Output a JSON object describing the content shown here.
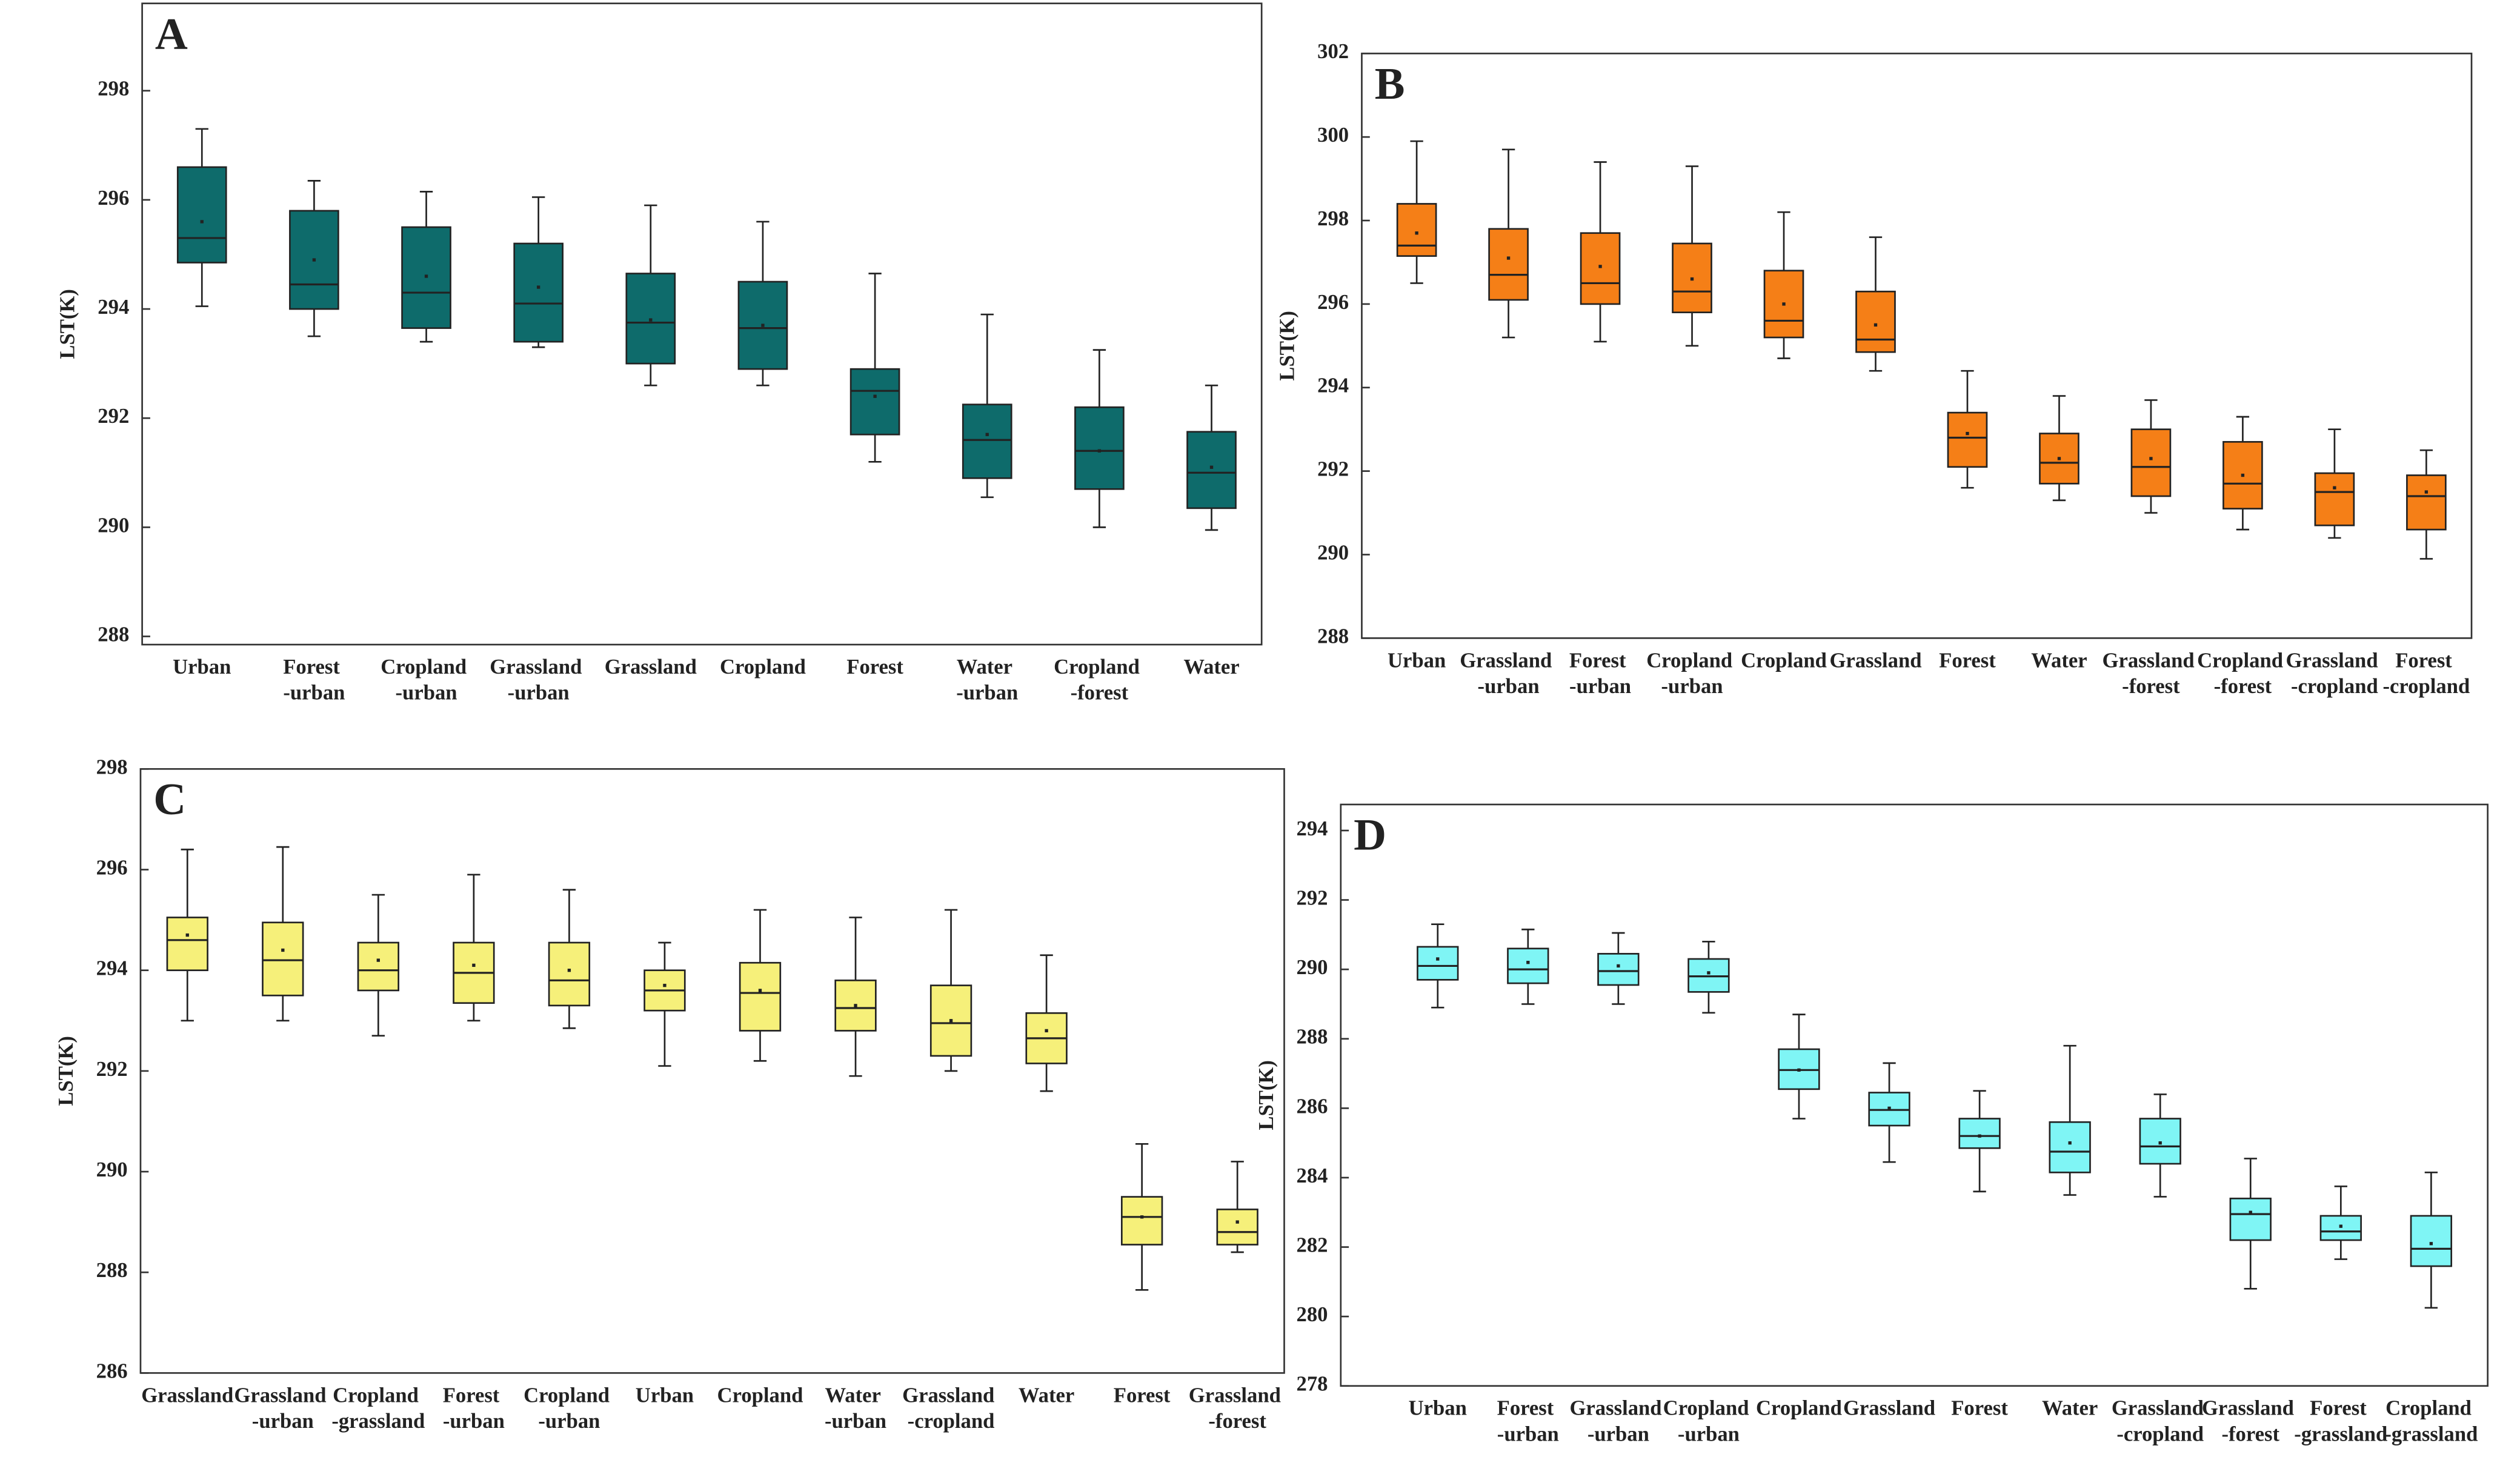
{
  "chart_data": [
    {
      "type": "box",
      "label": "A",
      "ylabel": "LST(K)",
      "color": "#0e6b6b",
      "categories": [
        "Urban",
        "Forest\n-urban",
        "Cropland\n-urban",
        "Grassland\n-urban",
        "Grassland",
        "Cropland",
        "Forest",
        "Water\n-urban",
        "Cropland\n-forest",
        "Water"
      ],
      "whislo": [
        294.05,
        293.5,
        293.4,
        293.3,
        292.6,
        292.6,
        291.2,
        290.55,
        290.0,
        289.95
      ],
      "q1": [
        294.85,
        294.0,
        293.65,
        293.4,
        293.0,
        292.9,
        291.7,
        290.9,
        290.7,
        290.35
      ],
      "median": [
        295.3,
        294.45,
        294.3,
        294.1,
        293.75,
        293.65,
        292.5,
        291.6,
        291.4,
        291.0
      ],
      "q3": [
        296.6,
        295.8,
        295.5,
        295.2,
        294.65,
        294.5,
        292.9,
        292.25,
        292.2,
        291.75
      ],
      "whishi": [
        297.3,
        296.35,
        296.15,
        296.05,
        295.9,
        295.6,
        294.65,
        293.9,
        293.25,
        292.6
      ],
      "mean": [
        295.6,
        294.9,
        294.6,
        294.4,
        293.8,
        293.7,
        292.4,
        291.7,
        291.4,
        291.1
      ],
      "ylim": [
        287.85,
        299.6
      ],
      "yticks": [
        288,
        290,
        292,
        294,
        296,
        298
      ]
    },
    {
      "type": "box",
      "label": "B",
      "ylabel": "LST(K)",
      "color": "#f57f17",
      "categories": [
        "Urban",
        "Grassland\n-urban",
        "Forest\n-urban",
        "Cropland\n-urban",
        "Cropland",
        "Grassland",
        "Forest",
        "Water",
        "Grassland\n-forest",
        "Cropland\n-forest",
        "Grassland\n-cropland",
        "Forest\n-cropland"
      ],
      "whislo": [
        296.5,
        295.2,
        295.1,
        295.0,
        294.7,
        294.4,
        291.6,
        291.3,
        291.0,
        290.6,
        290.4,
        289.9
      ],
      "q1": [
        297.15,
        296.1,
        296.0,
        295.8,
        295.2,
        294.85,
        292.1,
        291.7,
        291.4,
        291.1,
        290.7,
        290.6
      ],
      "median": [
        297.4,
        296.7,
        296.5,
        296.3,
        295.6,
        295.15,
        292.8,
        292.2,
        292.1,
        291.7,
        291.5,
        291.4
      ],
      "q3": [
        298.4,
        297.8,
        297.7,
        297.45,
        296.8,
        296.3,
        293.4,
        292.9,
        293.0,
        292.7,
        291.95,
        291.9
      ],
      "whishi": [
        299.9,
        299.7,
        299.4,
        299.3,
        298.2,
        297.6,
        294.4,
        293.8,
        293.7,
        293.3,
        293.0,
        292.5
      ],
      "mean": [
        297.7,
        297.1,
        296.9,
        296.6,
        296.0,
        295.5,
        292.9,
        292.3,
        292.3,
        291.9,
        291.6,
        291.5
      ],
      "ylim": [
        288,
        302
      ],
      "yticks": [
        288,
        290,
        292,
        294,
        296,
        298,
        300,
        302
      ]
    },
    {
      "type": "box",
      "label": "C",
      "ylabel": "LST(K)",
      "color": "#f6f07a",
      "categories": [
        "Grassland",
        "Grassland\n-urban",
        "Cropland\n-grassland",
        "Forest\n-urban",
        "Cropland\n-urban",
        "Urban",
        "Cropland",
        "Water\n-urban",
        "Grassland\n-cropland",
        "Water",
        "Forest",
        "Grassland\n-forest"
      ],
      "whislo": [
        293.0,
        293.0,
        292.7,
        293.0,
        292.85,
        292.1,
        292.2,
        291.9,
        292.0,
        291.6,
        287.65,
        288.4
      ],
      "q1": [
        294.0,
        293.5,
        293.6,
        293.35,
        293.3,
        293.2,
        292.8,
        292.8,
        292.3,
        292.15,
        288.55,
        288.55
      ],
      "median": [
        294.6,
        294.2,
        294.0,
        293.95,
        293.8,
        293.6,
        293.55,
        293.25,
        292.95,
        292.65,
        289.1,
        288.8
      ],
      "q3": [
        295.05,
        294.95,
        294.55,
        294.55,
        294.55,
        294.0,
        294.15,
        293.8,
        293.7,
        293.15,
        289.5,
        289.25
      ],
      "whishi": [
        296.4,
        296.45,
        295.5,
        295.9,
        295.6,
        294.55,
        295.2,
        295.05,
        295.2,
        294.3,
        290.55,
        290.2
      ],
      "mean": [
        294.7,
        294.4,
        294.2,
        294.1,
        294.0,
        293.7,
        293.6,
        293.3,
        293.0,
        292.8,
        289.1,
        289.0
      ],
      "ylim": [
        286,
        298
      ],
      "yticks": [
        286,
        288,
        290,
        292,
        294,
        296,
        298
      ]
    },
    {
      "type": "box",
      "label": "D",
      "ylabel": "LST(K)",
      "color": "#7ff5f5",
      "categories": [
        "Urban",
        "Forest\n-urban",
        "Grassland\n-urban",
        "Cropland\n-urban",
        "Cropland",
        "Grassland",
        "Forest",
        "Water",
        "Grassland\n-cropland",
        "Grassland\n-forest",
        "Forest\n-grassland",
        "Cropland\n-grassland"
      ],
      "whislo": [
        288.9,
        289.0,
        289.0,
        288.75,
        285.7,
        284.45,
        283.6,
        283.5,
        283.45,
        280.8,
        281.65,
        280.25
      ],
      "q1": [
        289.7,
        289.6,
        289.55,
        289.35,
        286.55,
        285.5,
        284.85,
        284.15,
        284.4,
        282.2,
        282.2,
        281.45
      ],
      "median": [
        290.1,
        290.0,
        289.95,
        289.8,
        287.1,
        285.95,
        285.2,
        284.75,
        284.9,
        282.95,
        282.45,
        281.95
      ],
      "q3": [
        290.65,
        290.6,
        290.45,
        290.3,
        287.7,
        286.45,
        285.7,
        285.6,
        285.7,
        283.4,
        282.9,
        282.9
      ],
      "whishi": [
        291.3,
        291.15,
        291.05,
        290.8,
        288.7,
        287.3,
        286.5,
        287.8,
        286.4,
        284.55,
        283.75,
        284.15
      ],
      "mean": [
        290.3,
        290.2,
        290.1,
        289.9,
        287.1,
        286.0,
        285.2,
        285.0,
        285.0,
        283.0,
        282.6,
        282.1
      ],
      "ylim": [
        278,
        294.75
      ],
      "yticks": [
        278,
        280,
        282,
        284,
        286,
        288,
        290,
        292,
        294
      ]
    }
  ]
}
